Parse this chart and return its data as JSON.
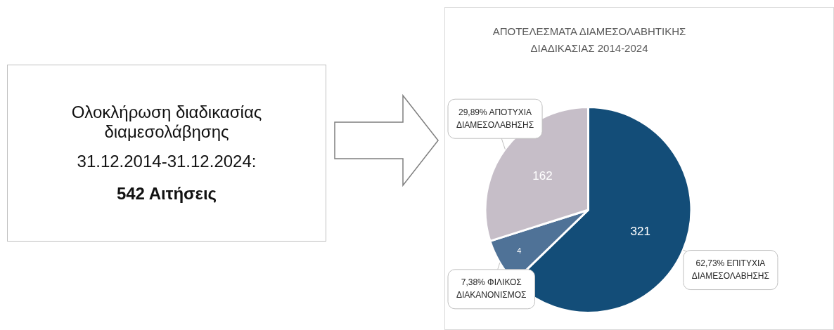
{
  "chart_data": [
    {
      "type": "other",
      "annotations": [
        "Ολοκλήρωση διαδικασίας διαμεσολάβησης",
        "31.12.2014-31.12.2024:",
        "542 Αιτήσεις"
      ]
    },
    {
      "type": "pie",
      "title": "ΑΠΟΤΕΛΕΣΜΑΤΑ ΔΙΑΜΕΣΟΛΑΒΗΤΙΚΗΣ ΔΙΑΔΙΚΑΣΙΑΣ 2014-2024",
      "categories": [
        "ΕΠΙΤΥΧΙΑ ΔΙΑΜΕΣΟΛΑΒΗΣΗΣ",
        "ΦΙΛΙΚΟΣ ΔΙΑΚΑΝΟΝΙΣΜΟΣ",
        "ΑΠΟΤΥΧΙΑ ΔΙΑΜΕΣΟΛΑΒΗΣΗΣ"
      ],
      "values": [
        62.73,
        7.38,
        29.89
      ],
      "value_labels": [
        "62,73%",
        "7,38%",
        "29,89%"
      ],
      "annotations": [
        "321",
        "4",
        "162"
      ],
      "colors": [
        "#134d78",
        "#4f7297",
        "#c6bec8"
      ]
    }
  ]
}
